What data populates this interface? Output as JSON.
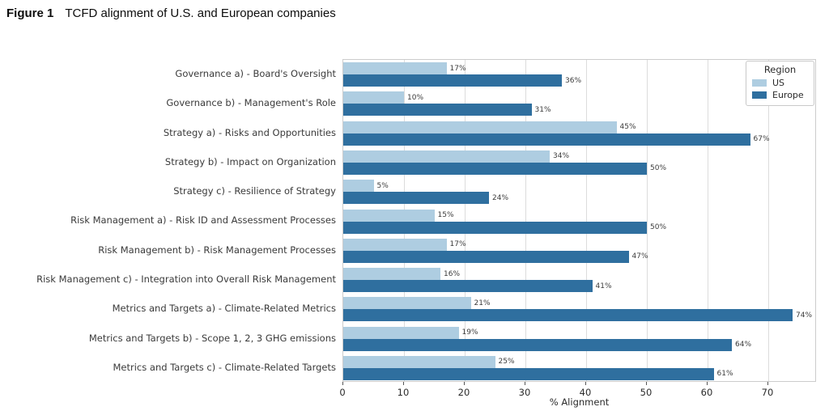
{
  "figure_title": {
    "label": "Figure 1",
    "text": "TCFD alignment of U.S. and European companies"
  },
  "chart_data": {
    "type": "bar",
    "orientation": "horizontal",
    "title": "TCFD alignment of U.S. and European companies",
    "categories": [
      "Governance a) - Board's Oversight",
      "Governance b) - Management's Role",
      "Strategy a) - Risks and Opportunities",
      "Strategy b) - Impact on Organization",
      "Strategy c) - Resilience of Strategy",
      "Risk Management a) - Risk ID and Assessment Processes",
      "Risk Management b) - Risk Management Processes",
      "Risk Management c) - Integration into Overall Risk Management",
      "Metrics and Targets a) - Climate-Related Metrics",
      "Metrics and Targets b) - Scope 1, 2, 3 GHG emissions",
      "Metrics and Targets c) - Climate-Related Targets"
    ],
    "series": [
      {
        "name": "US",
        "color": "#aecde1",
        "values": [
          17,
          10,
          45,
          34,
          5,
          15,
          17,
          16,
          21,
          19,
          25
        ]
      },
      {
        "name": "Europe",
        "color": "#2f6f9f",
        "values": [
          36,
          31,
          67,
          50,
          24,
          50,
          47,
          41,
          74,
          64,
          61
        ]
      }
    ],
    "value_suffix": "%",
    "xlabel": "% Alignment",
    "xticks": [
      0,
      10,
      20,
      30,
      40,
      50,
      60,
      70
    ],
    "xlim": [
      0,
      78
    ],
    "grid": true,
    "legend": {
      "title": "Region",
      "position": "upper right"
    },
    "colors": {
      "us": "#aecde1",
      "europe": "#2f6f9f",
      "gridline": "#dcdcdc",
      "spine": "#cccccc",
      "text": "#3a3a3a"
    }
  }
}
